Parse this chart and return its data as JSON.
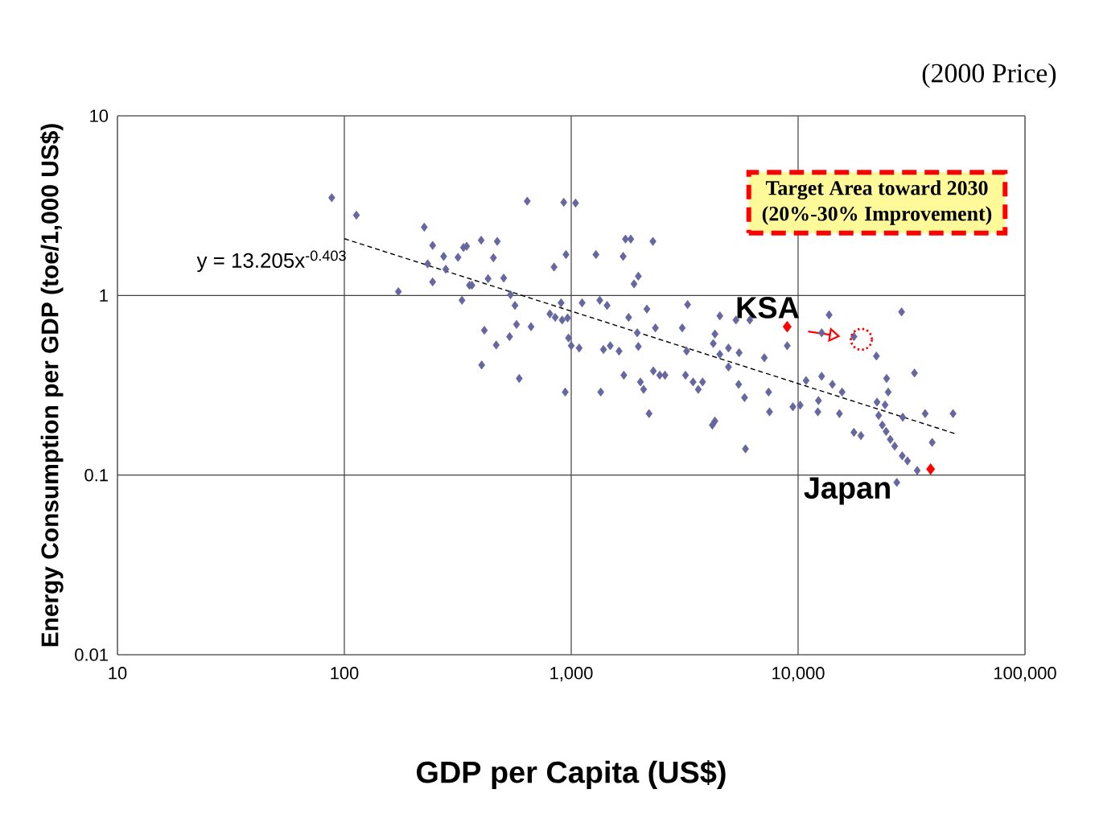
{
  "chart_data": {
    "type": "scatter",
    "xlabel": "GDP per Capita (US$)",
    "ylabel": "Energy Consumption per GDP (toe/1,000 US$)",
    "log": "xy",
    "grid": true,
    "legend": false,
    "marker": "diamond",
    "xlim": [
      10,
      100000
    ],
    "ylim": [
      0.01,
      10
    ],
    "xticks": [
      10,
      100,
      {
        "value": 1000,
        "label": "1,000"
      },
      {
        "value": 10000,
        "label": "10,000"
      },
      {
        "value": 100000,
        "label": "100,000"
      }
    ],
    "yticks": [
      0.01,
      0.1,
      1,
      10
    ],
    "annotations": [
      "(2000 Price)",
      "y = 13.205x$^{-0.403}$",
      "Target Area toward 2030",
      "(20%-30% Improvement)"
    ],
    "series": [
      {
        "color": "#6666a0",
        "x": [
          88,
          113,
          225,
          245,
          233,
          245,
          274,
          280,
          317,
          335,
          173,
          330,
          356,
          640,
          927,
          1045,
          401,
          472,
          454,
          346,
          365,
          430,
          504,
          540,
          565,
          414,
          467,
          535,
          574,
          665,
          403,
          590,
          840,
          948,
          805,
          850,
          912,
          902,
          964,
          1117,
          973,
          1000,
          1084,
          941,
          1285,
          1336,
          1439,
          1387,
          1486,
          1625,
          1349,
          1734,
          1830,
          1694,
          1976,
          1892,
          2291,
          2155,
          1791,
          1954,
          1976,
          1706,
          2018,
          2084,
          2301,
          2455,
          2590,
          2350,
          2203,
          3085,
          3225,
          3190,
          3444,
          3630,
          3793,
          3258,
          4519,
          5321,
          6125,
          4299,
          4227,
          4519,
          4932,
          5495,
          4932,
          7096,
          5470,
          5808,
          7413,
          7482,
          4299,
          4188,
          5861,
          8954,
          9484,
          10210,
          10840,
          13700,
          28580,
          12700,
          17620,
          22130,
          32580,
          12700,
          14160,
          15630,
          24550,
          24950,
          12300,
          12220,
          15210,
          22280,
          24170,
          22650,
          28920,
          36310,
          48190,
          23500,
          24430,
          25480,
          26650,
          17620,
          18920,
          38990,
          28770,
          30340,
          33500,
          27230
        ],
        "values": [
          3.5,
          2.8,
          2.4,
          1.9,
          1.5,
          1.19,
          1.65,
          1.4,
          1.63,
          1.85,
          1.05,
          0.94,
          1.14,
          3.35,
          3.3,
          3.27,
          2.03,
          2.0,
          1.62,
          1.88,
          1.14,
          1.24,
          1.25,
          1.01,
          0.88,
          0.64,
          0.53,
          0.59,
          0.69,
          0.67,
          0.41,
          0.345,
          1.44,
          1.69,
          0.79,
          0.755,
          0.73,
          0.91,
          0.75,
          0.91,
          0.58,
          0.525,
          0.51,
          0.29,
          1.69,
          0.94,
          0.88,
          0.5,
          0.525,
          0.49,
          0.29,
          2.06,
          2.06,
          1.65,
          1.28,
          1.16,
          2.0,
          0.84,
          0.755,
          0.62,
          0.52,
          0.36,
          0.33,
          0.3,
          0.38,
          0.36,
          0.36,
          0.66,
          0.22,
          0.66,
          0.49,
          0.36,
          0.33,
          0.3,
          0.33,
          0.89,
          0.77,
          0.73,
          0.73,
          0.61,
          0.54,
          0.47,
          0.51,
          0.48,
          0.4,
          0.45,
          0.32,
          0.27,
          0.29,
          0.225,
          0.2,
          0.19,
          0.14,
          0.525,
          0.24,
          0.245,
          0.336,
          0.78,
          0.81,
          0.62,
          0.59,
          0.46,
          0.37,
          0.355,
          0.32,
          0.29,
          0.345,
          0.29,
          0.26,
          0.225,
          0.22,
          0.255,
          0.246,
          0.215,
          0.21,
          0.22,
          0.22,
          0.19,
          0.175,
          0.158,
          0.145,
          0.173,
          0.166,
          0.152,
          0.128,
          0.12,
          0.106,
          0.091
        ]
      },
      {
        "name": "KSA",
        "color": "#ff0000",
        "x": [
          8950
        ],
        "values": [
          0.67
        ]
      },
      {
        "name": "Japan",
        "color": "#ff0000",
        "x": [
          38370
        ],
        "values": [
          0.108
        ]
      },
      {
        "type": "scatter",
        "marker": "circle",
        "line_style": "dotted",
        "color": "#ff0000",
        "x": [
          19000
        ],
        "values": [
          0.57
        ]
      },
      {
        "type": "line",
        "line_style": "dashed",
        "marker": "none",
        "color": "#000000",
        "x": [
          100,
          50000
        ],
        "values": [
          2.07,
          0.169
        ]
      }
    ]
  }
}
